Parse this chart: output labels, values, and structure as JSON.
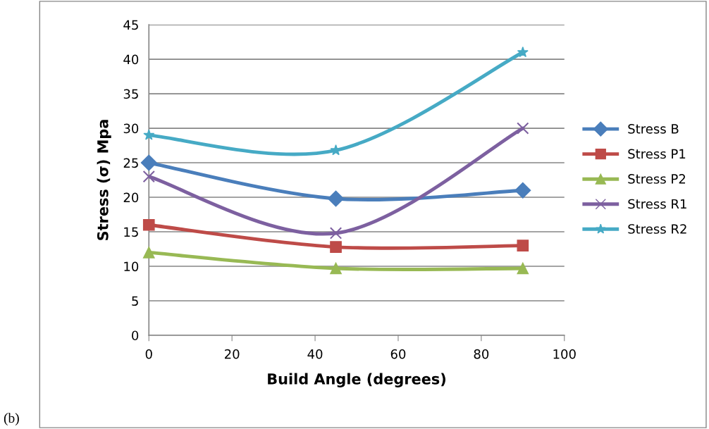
{
  "chart_data": {
    "type": "line",
    "xlabel": "Build Angle (degrees)",
    "ylabel": "Stress (σ) Mpa",
    "x": [
      0,
      45,
      90
    ],
    "series": [
      {
        "name": "Stress B",
        "color": "#4a7ebb",
        "values": [
          25,
          19.8,
          21
        ],
        "marker": "diamond"
      },
      {
        "name": "Stress P1",
        "color": "#be4b48",
        "values": [
          16,
          12.8,
          13
        ],
        "marker": "square"
      },
      {
        "name": "Stress P2",
        "color": "#98b954",
        "values": [
          12,
          9.7,
          9.7
        ],
        "marker": "triangle"
      },
      {
        "name": "Stress R1",
        "color": "#7d60a0",
        "values": [
          23,
          14.8,
          30
        ],
        "marker": "cross"
      },
      {
        "name": "Stress R2",
        "color": "#46aac5",
        "values": [
          29,
          26.8,
          41
        ],
        "marker": "star"
      }
    ],
    "xlim": [
      0,
      100
    ],
    "xticks": [
      0,
      20,
      40,
      60,
      80,
      100
    ],
    "ylim": [
      0,
      45
    ],
    "yticks": [
      0,
      5,
      10,
      15,
      20,
      25,
      30,
      35,
      40,
      45
    ],
    "grid": "y",
    "legend": "right",
    "line_style": "solid",
    "annotations": [
      "(b)"
    ]
  }
}
